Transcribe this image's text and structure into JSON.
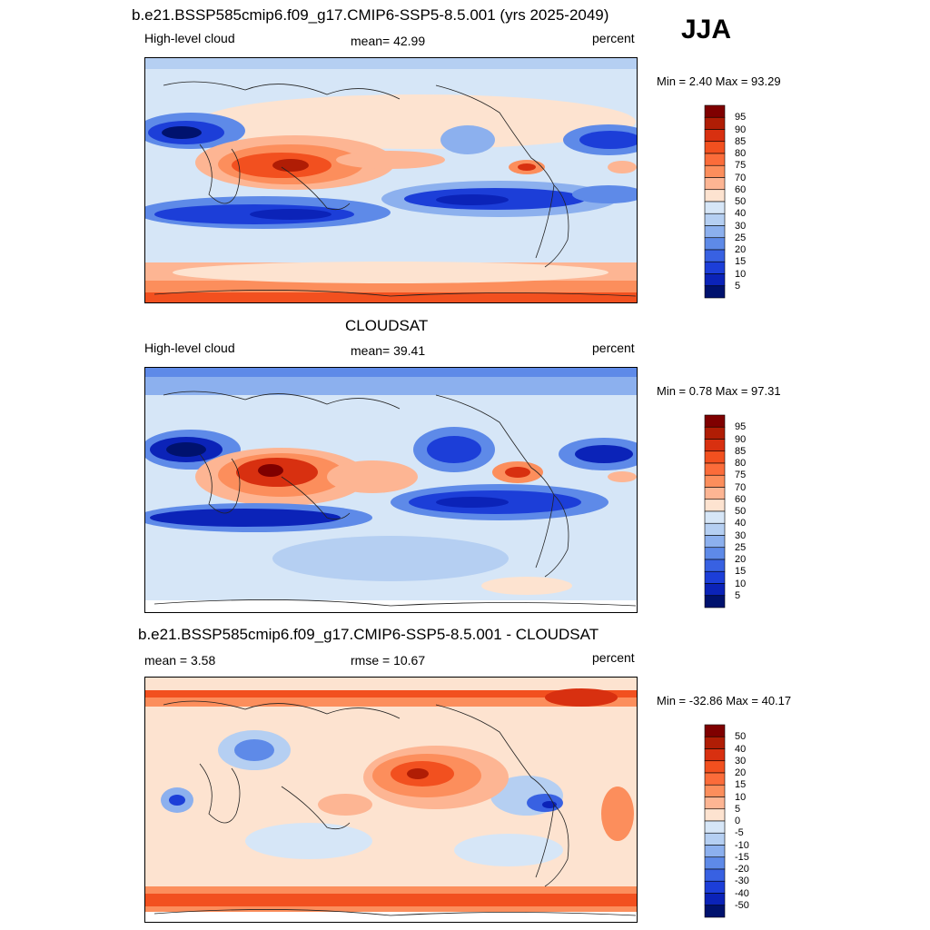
{
  "season": "JJA",
  "panels": [
    {
      "title": "b.e21.BSSP585cmip6.f09_g17.CMIP6-SSP5-8.5.001 (yrs 2025-2049)",
      "left_label": "High-level cloud",
      "center_label": "mean=  42.99",
      "right_label": "percent",
      "minmax": "Min =   2.40 Max =  93.29",
      "colorbar": {
        "levels": [
          "95",
          "90",
          "85",
          "80",
          "75",
          "70",
          "60",
          "50",
          "40",
          "30",
          "25",
          "20",
          "15",
          "10",
          "5"
        ],
        "colors": [
          "#7f0000",
          "#b01d05",
          "#d83010",
          "#f2501f",
          "#fb6c3a",
          "#fc8e5c",
          "#fdb593",
          "#fde3d0",
          "#d6e6f7",
          "#b5cff2",
          "#8cb0ee",
          "#5e8ae8",
          "#3861e2",
          "#1c3ed8",
          "#0b23b8",
          "#00126e"
        ]
      }
    },
    {
      "title": "CLOUDSAT",
      "left_label": "High-level cloud",
      "center_label": "mean=  39.41",
      "right_label": "percent",
      "minmax": "Min =   0.78 Max =  97.31",
      "colorbar": {
        "levels": [
          "95",
          "90",
          "85",
          "80",
          "75",
          "70",
          "60",
          "50",
          "40",
          "30",
          "25",
          "20",
          "15",
          "10",
          "5"
        ],
        "colors": [
          "#7f0000",
          "#b01d05",
          "#d83010",
          "#f2501f",
          "#fb6c3a",
          "#fc8e5c",
          "#fdb593",
          "#fde3d0",
          "#d6e6f7",
          "#b5cff2",
          "#8cb0ee",
          "#5e8ae8",
          "#3861e2",
          "#1c3ed8",
          "#0b23b8",
          "#00126e"
        ]
      }
    },
    {
      "title": "b.e21.BSSP585cmip6.f09_g17.CMIP6-SSP5-8.5.001 - CLOUDSAT",
      "left_label": "mean =   3.58",
      "center_label": "rmse =  10.67",
      "right_label": "percent",
      "minmax": "Min = -32.86 Max =  40.17",
      "colorbar": {
        "levels": [
          "50",
          "40",
          "30",
          "20",
          "15",
          "10",
          "5",
          "0",
          "-5",
          "-10",
          "-15",
          "-20",
          "-30",
          "-40",
          "-50"
        ],
        "colors": [
          "#7f0000",
          "#b01d05",
          "#d83010",
          "#f2501f",
          "#fb6c3a",
          "#fc8e5c",
          "#fdb593",
          "#fde3d0",
          "#d6e6f7",
          "#b5cff2",
          "#8cb0ee",
          "#5e8ae8",
          "#3861e2",
          "#1c3ed8",
          "#0b23b8",
          "#00126e"
        ]
      }
    }
  ]
}
